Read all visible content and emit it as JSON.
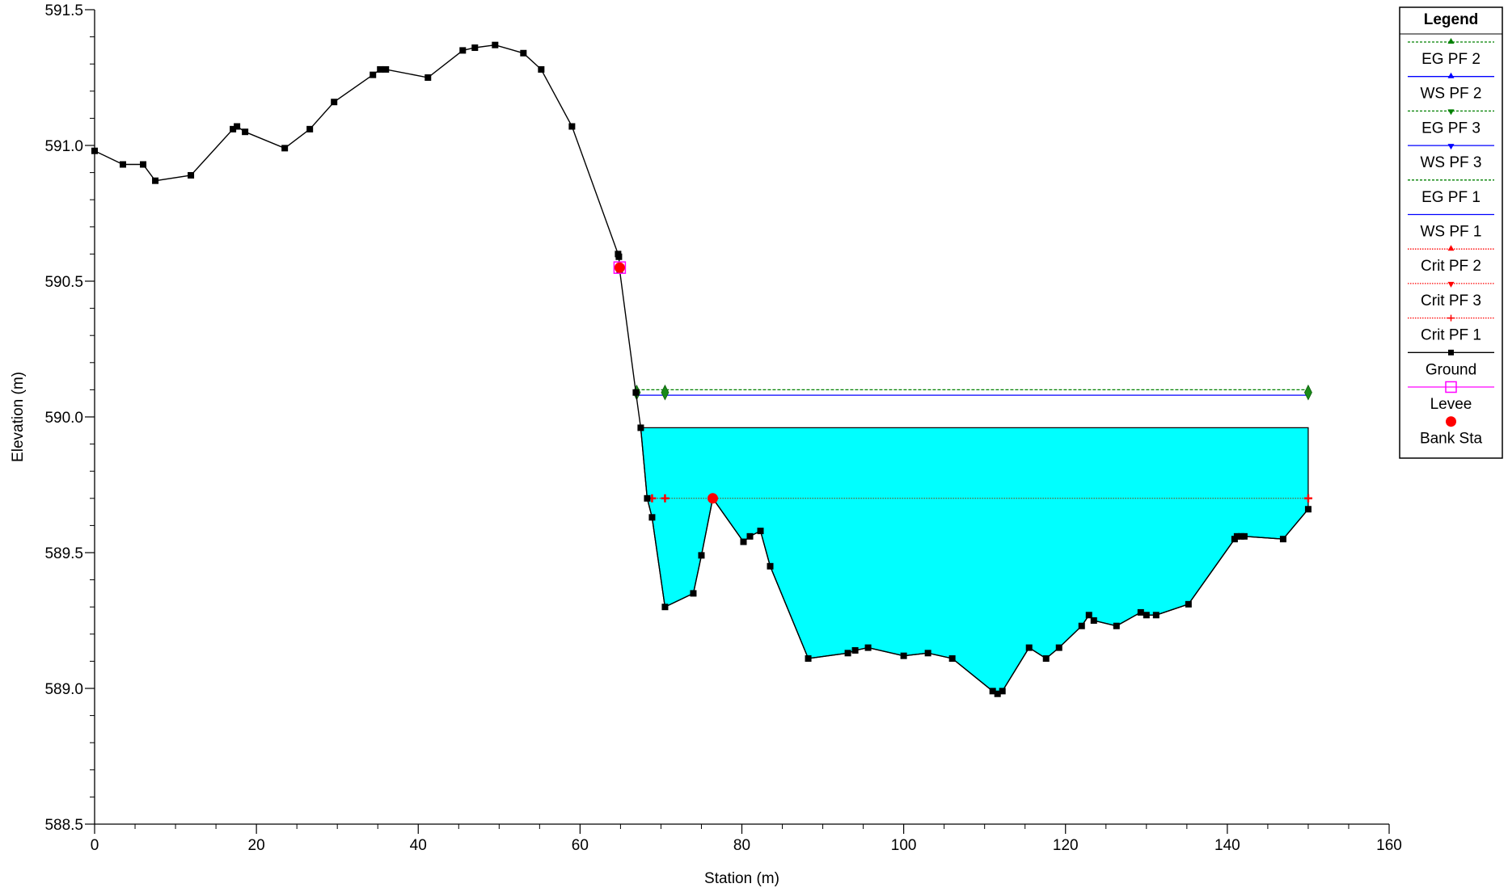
{
  "chart_data": {
    "type": "line",
    "xlabel": "Station (m)",
    "ylabel": "Elevation (m)",
    "xlim": [
      0,
      160
    ],
    "ylim": [
      588.5,
      591.5
    ],
    "xticks": [
      0,
      20,
      40,
      60,
      80,
      100,
      120,
      140,
      160
    ],
    "yticks": [
      588.5,
      589.0,
      589.5,
      590.0,
      590.5,
      591.0,
      591.5
    ],
    "ytick_labels": [
      "588.5",
      "589.0",
      "589.5",
      "590.0",
      "590.5",
      "591.0",
      "591.5"
    ],
    "grid": false,
    "legend_title": "Legend",
    "legend_position": "top-right",
    "water_fill_color": "#00ffff",
    "legend": [
      {
        "name": "EG PF 2",
        "color": "#008000",
        "dash": "dashed",
        "marker": "triangle-up"
      },
      {
        "name": "WS PF 2",
        "color": "#0000ff",
        "dash": "solid",
        "marker": "triangle-up"
      },
      {
        "name": "EG PF 3",
        "color": "#008000",
        "dash": "dashed",
        "marker": "triangle-down"
      },
      {
        "name": "WS PF 3",
        "color": "#0000ff",
        "dash": "solid",
        "marker": "triangle-down"
      },
      {
        "name": "EG PF 1",
        "color": "#008000",
        "dash": "dashed",
        "marker": "none"
      },
      {
        "name": "WS PF 1",
        "color": "#0000ff",
        "dash": "solid",
        "marker": "none"
      },
      {
        "name": "Crit PF 2",
        "color": "#ff0000",
        "dash": "dotted",
        "marker": "triangle-up"
      },
      {
        "name": "Crit PF 3",
        "color": "#ff0000",
        "dash": "dotted",
        "marker": "triangle-down"
      },
      {
        "name": "Crit PF 1",
        "color": "#ff0000",
        "dash": "dotted",
        "marker": "plus"
      },
      {
        "name": "Ground",
        "color": "#000000",
        "dash": "solid",
        "marker": "square"
      },
      {
        "name": "Levee",
        "color": "#ff00ff",
        "dash": "solid",
        "marker": "square-open"
      },
      {
        "name": "Bank Sta",
        "color": "#ff0000",
        "dash": "none",
        "marker": "circle"
      }
    ],
    "ground": {
      "x": [
        0,
        3.5,
        6,
        7.5,
        11.9,
        17.1,
        17.6,
        18.6,
        23.5,
        26.6,
        29.6,
        34.4,
        35.3,
        36,
        41.2,
        45.5,
        47,
        49.5,
        53,
        55.2,
        59,
        64.7,
        64.8,
        64.9,
        66.9,
        67.5,
        68.3,
        68.9,
        70.5,
        74,
        75,
        76.4,
        80.2,
        81,
        82.3,
        83.5,
        88.2,
        93.1,
        94,
        95.6,
        100,
        103,
        106,
        111,
        111.6,
        112.2,
        115.5,
        117.6,
        119.2,
        122,
        122.9,
        123.5,
        126.3,
        129.3,
        130,
        131.2,
        135.2,
        140.9,
        141.2,
        141.7,
        142.1,
        146.9,
        150
      ],
      "y": [
        590.98,
        590.93,
        590.93,
        590.87,
        590.89,
        591.06,
        591.07,
        591.05,
        590.99,
        591.06,
        591.16,
        591.26,
        591.28,
        591.28,
        591.25,
        591.35,
        591.36,
        591.37,
        591.34,
        591.28,
        591.07,
        590.6,
        590.59,
        590.54,
        590.09,
        589.96,
        589.7,
        589.63,
        589.3,
        589.35,
        589.49,
        589.7,
        589.54,
        589.56,
        589.58,
        589.45,
        589.11,
        589.13,
        589.14,
        589.15,
        589.12,
        589.13,
        589.11,
        588.99,
        588.98,
        588.99,
        589.15,
        589.11,
        589.15,
        589.23,
        589.27,
        589.25,
        589.23,
        589.28,
        589.27,
        589.27,
        589.31,
        589.55,
        589.56,
        589.56,
        589.56,
        589.55,
        589.66
      ]
    },
    "water_surface": {
      "elevation": 589.96,
      "x_start": 67.5,
      "x_end": 150
    },
    "energy_grade_lines": [
      {
        "elevation": 590.1,
        "x_start": 67,
        "x_end": 150,
        "marker_x": [
          67,
          70.5,
          150
        ]
      },
      {
        "elevation": 590.08,
        "x_start": 67,
        "x_end": 150,
        "marker_x": [
          67,
          70.5,
          150
        ]
      }
    ],
    "crit_line": {
      "elevation": 589.7,
      "x_start": 68.9,
      "x_end": 150,
      "marker_x": [
        68.9,
        70.5,
        76.4,
        150
      ]
    },
    "bank_stations": [
      {
        "x": 64.9,
        "y": 590.55
      },
      {
        "x": 76.4,
        "y": 589.7
      }
    ],
    "levee": [
      {
        "x": 64.9,
        "y": 590.55
      }
    ]
  }
}
